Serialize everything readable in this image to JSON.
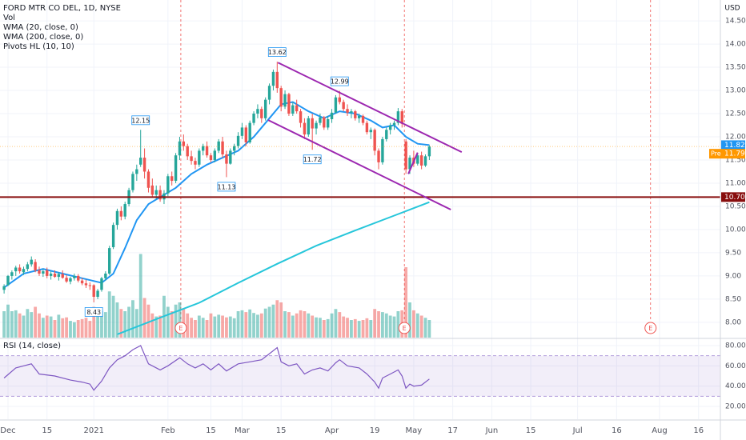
{
  "chart_data": [
    {
      "type": "candlestick",
      "title": "FORD MTR CO DEL, 1D, NYSE",
      "currency": "USD",
      "volume_name": "Vol",
      "up_color": "#26a69a",
      "down_color": "#ef5350",
      "xlim": [
        -1.05,
        183.6
      ],
      "ylim": [
        7.67,
        14.95
      ],
      "vlim": [
        0,
        400
      ],
      "yticks": [
        {
          "value": 8,
          "label": "8.00"
        },
        {
          "value": 8.5,
          "label": "8.50"
        },
        {
          "value": 9,
          "label": "9.00"
        },
        {
          "value": 9.5,
          "label": "9.50"
        },
        {
          "value": 10,
          "label": "10.00"
        },
        {
          "value": 10.5,
          "label": "10.50"
        },
        {
          "value": 11,
          "label": "11.00"
        },
        {
          "value": 11.5,
          "label": "11.50"
        },
        {
          "value": 12,
          "label": "12.00"
        },
        {
          "value": 12.5,
          "label": "12.50"
        },
        {
          "value": 13,
          "label": "13.00"
        },
        {
          "value": 13.5,
          "label": "13.50"
        },
        {
          "value": 14,
          "label": "14.00"
        },
        {
          "value": 14.5,
          "label": "14.50"
        }
      ],
      "xticks": [
        {
          "value": 1,
          "label": "Dec"
        },
        {
          "value": 11,
          "label": "15"
        },
        {
          "value": 23,
          "label": "2021"
        },
        {
          "value": 42,
          "label": "Feb"
        },
        {
          "value": 53,
          "label": "15"
        },
        {
          "value": 61,
          "label": "Mar"
        },
        {
          "value": 71,
          "label": "15"
        },
        {
          "value": 84,
          "label": "Apr"
        },
        {
          "value": 95,
          "label": "19"
        },
        {
          "value": 105,
          "label": "May"
        },
        {
          "value": 115,
          "label": "17"
        },
        {
          "value": 125,
          "label": "Jun"
        },
        {
          "value": 135,
          "label": "15"
        },
        {
          "value": 147,
          "label": "Jul"
        },
        {
          "value": 157,
          "label": "16"
        },
        {
          "value": 168,
          "label": "Aug"
        },
        {
          "value": 178,
          "label": "16"
        }
      ],
      "candles": [
        [
          8.7,
          8.82,
          8.62,
          8.78
        ],
        [
          8.8,
          9.02,
          8.78,
          9.0
        ],
        [
          9.0,
          9.12,
          8.92,
          9.08
        ],
        [
          9.1,
          9.22,
          9.0,
          9.18
        ],
        [
          9.18,
          9.25,
          9.05,
          9.1
        ],
        [
          9.08,
          9.2,
          9.02,
          9.15
        ],
        [
          9.15,
          9.3,
          9.1,
          9.25
        ],
        [
          9.25,
          9.42,
          9.2,
          9.35
        ],
        [
          9.3,
          9.36,
          9.08,
          9.12
        ],
        [
          9.12,
          9.2,
          9.0,
          9.05
        ],
        [
          9.05,
          9.15,
          8.98,
          9.1
        ],
        [
          9.12,
          9.18,
          8.95,
          9.0
        ],
        [
          9.0,
          9.1,
          8.92,
          9.05
        ],
        [
          9.05,
          9.12,
          8.96,
          8.98
        ],
        [
          8.98,
          9.08,
          8.9,
          9.04
        ],
        [
          9.04,
          9.12,
          8.94,
          8.96
        ],
        [
          8.96,
          9.02,
          8.85,
          8.88
        ],
        [
          8.88,
          8.98,
          8.82,
          8.95
        ],
        [
          8.95,
          9.05,
          8.9,
          9.0
        ],
        [
          9.0,
          9.04,
          8.86,
          8.9
        ],
        [
          8.9,
          8.96,
          8.8,
          8.84
        ],
        [
          8.84,
          8.92,
          8.74,
          8.8
        ],
        [
          8.8,
          8.86,
          8.7,
          8.79
        ],
        [
          8.8,
          8.82,
          8.43,
          8.55
        ],
        [
          8.55,
          8.72,
          8.5,
          8.68
        ],
        [
          8.7,
          8.98,
          8.66,
          8.95
        ],
        [
          8.95,
          9.1,
          8.9,
          9.05
        ],
        [
          9.05,
          9.65,
          9.02,
          9.6
        ],
        [
          9.62,
          10.15,
          9.58,
          10.1
        ],
        [
          10.1,
          10.45,
          10.0,
          10.4
        ],
        [
          10.4,
          10.5,
          10.2,
          10.28
        ],
        [
          10.28,
          10.6,
          10.22,
          10.55
        ],
        [
          10.55,
          10.9,
          10.5,
          10.85
        ],
        [
          10.85,
          11.25,
          10.8,
          11.2
        ],
        [
          11.2,
          11.4,
          11.05,
          11.3
        ],
        [
          11.4,
          12.15,
          11.35,
          11.55
        ],
        [
          11.55,
          11.75,
          11.1,
          11.25
        ],
        [
          11.25,
          11.3,
          10.8,
          10.9
        ],
        [
          10.95,
          11.1,
          10.7,
          10.75
        ],
        [
          10.75,
          10.95,
          10.65,
          10.85
        ],
        [
          10.85,
          10.95,
          10.6,
          10.65
        ],
        [
          10.65,
          10.85,
          10.55,
          10.78
        ],
        [
          10.78,
          11.2,
          10.72,
          11.15
        ],
        [
          11.15,
          11.25,
          10.95,
          11.05
        ],
        [
          11.05,
          11.65,
          11.0,
          11.6
        ],
        [
          11.6,
          12.0,
          11.5,
          11.9
        ],
        [
          11.9,
          12.05,
          11.7,
          11.8
        ],
        [
          11.8,
          11.85,
          11.5,
          11.58
        ],
        [
          11.58,
          11.7,
          11.4,
          11.48
        ],
        [
          11.48,
          11.55,
          11.3,
          11.4
        ],
        [
          11.4,
          11.75,
          11.35,
          11.7
        ],
        [
          11.7,
          11.85,
          11.6,
          11.8
        ],
        [
          11.8,
          11.9,
          11.55,
          11.6
        ],
        [
          11.6,
          11.65,
          11.45,
          11.5
        ],
        [
          11.5,
          11.75,
          11.45,
          11.7
        ],
        [
          11.7,
          11.95,
          11.65,
          11.9
        ],
        [
          11.9,
          12.0,
          11.55,
          11.62
        ],
        [
          11.62,
          11.7,
          11.13,
          11.42
        ],
        [
          11.42,
          11.75,
          11.4,
          11.7
        ],
        [
          11.7,
          11.85,
          11.6,
          11.8
        ],
        [
          11.8,
          12.1,
          11.75,
          12.02
        ],
        [
          12.02,
          12.3,
          11.95,
          12.2
        ],
        [
          12.2,
          12.25,
          11.8,
          11.88
        ],
        [
          11.88,
          12.35,
          11.85,
          12.3
        ],
        [
          12.3,
          12.55,
          12.25,
          12.5
        ],
        [
          12.5,
          12.7,
          12.4,
          12.6
        ],
        [
          12.6,
          12.65,
          12.3,
          12.4
        ],
        [
          12.4,
          12.85,
          12.35,
          12.8
        ],
        [
          12.8,
          13.15,
          12.7,
          13.1
        ],
        [
          13.1,
          13.45,
          13.0,
          13.4
        ],
        [
          13.4,
          13.62,
          12.95,
          13.05
        ],
        [
          13.05,
          13.1,
          12.55,
          12.65
        ],
        [
          12.65,
          13.0,
          12.6,
          12.92
        ],
        [
          12.92,
          12.95,
          12.45,
          12.5
        ],
        [
          12.5,
          12.75,
          12.45,
          12.68
        ],
        [
          12.68,
          12.8,
          12.5,
          12.55
        ],
        [
          12.55,
          12.6,
          12.2,
          12.3
        ],
        [
          12.3,
          12.4,
          11.95,
          12.05
        ],
        [
          12.05,
          12.45,
          12.0,
          12.4
        ],
        [
          12.4,
          12.5,
          11.72,
          12.18
        ],
        [
          12.18,
          12.35,
          12.05,
          12.3
        ],
        [
          12.3,
          12.5,
          12.25,
          12.42
        ],
        [
          12.42,
          12.45,
          12.15,
          12.2
        ],
        [
          12.2,
          12.45,
          12.15,
          12.38
        ],
        [
          12.38,
          12.6,
          12.3,
          12.52
        ],
        [
          12.52,
          12.9,
          12.5,
          12.85
        ],
        [
          12.85,
          12.99,
          12.7,
          12.75
        ],
        [
          12.75,
          12.8,
          12.55,
          12.6
        ],
        [
          12.6,
          12.7,
          12.45,
          12.52
        ],
        [
          12.52,
          12.6,
          12.4,
          12.55
        ],
        [
          12.55,
          12.58,
          12.35,
          12.4
        ],
        [
          12.4,
          12.5,
          12.3,
          12.45
        ],
        [
          12.45,
          12.48,
          12.25,
          12.3
        ],
        [
          12.3,
          12.35,
          12.05,
          12.1
        ],
        [
          12.1,
          12.2,
          11.95,
          12.15
        ],
        [
          12.15,
          12.18,
          11.6,
          11.7
        ],
        [
          11.7,
          11.75,
          11.3,
          11.45
        ],
        [
          11.45,
          12.0,
          11.4,
          11.95
        ],
        [
          11.95,
          12.2,
          11.9,
          12.15
        ],
        [
          12.15,
          12.3,
          12.05,
          12.25
        ],
        [
          12.25,
          12.35,
          12.15,
          12.3
        ],
        [
          12.3,
          12.62,
          12.25,
          12.55
        ],
        [
          12.55,
          12.6,
          12.2,
          12.28
        ],
        [
          11.9,
          11.95,
          11.2,
          11.3
        ],
        [
          11.3,
          11.6,
          11.2,
          11.55
        ],
        [
          11.55,
          11.7,
          11.35,
          11.42
        ],
        [
          11.42,
          11.65,
          11.38,
          11.6
        ],
        [
          11.6,
          11.68,
          11.3,
          11.38
        ],
        [
          11.38,
          11.62,
          11.35,
          11.58
        ],
        [
          11.58,
          11.82,
          11.5,
          11.79
        ]
      ],
      "volume": [
        60,
        75,
        60,
        62,
        55,
        50,
        65,
        58,
        70,
        55,
        45,
        50,
        48,
        40,
        52,
        44,
        46,
        38,
        35,
        40,
        42,
        45,
        38,
        70,
        55,
        60,
        58,
        105,
        95,
        80,
        65,
        60,
        70,
        85,
        65,
        190,
        90,
        75,
        55,
        48,
        50,
        95,
        70,
        60,
        75,
        80,
        65,
        55,
        45,
        40,
        50,
        45,
        40,
        55,
        48,
        52,
        50,
        46,
        48,
        44,
        60,
        62,
        58,
        64,
        56,
        52,
        55,
        66,
        70,
        75,
        85,
        80,
        60,
        58,
        50,
        55,
        62,
        60,
        55,
        50,
        46,
        45,
        40,
        42,
        55,
        65,
        58,
        48,
        45,
        40,
        42,
        38,
        40,
        44,
        40,
        65,
        60,
        58,
        55,
        50,
        48,
        60,
        62,
        160,
        80,
        62,
        55,
        50,
        45,
        40
      ],
      "series": [
        {
          "name": "WMA (20, close, 0)",
          "color": "#2196f3",
          "x": [
            0,
            5,
            10,
            15,
            20,
            25,
            28,
            31,
            34,
            37,
            40,
            44,
            48,
            52,
            56,
            60,
            64,
            68,
            71,
            74,
            78,
            82,
            86,
            90,
            94,
            97,
            100,
            103,
            106,
            109
          ],
          "values": [
            8.75,
            9.05,
            9.15,
            9.05,
            8.95,
            8.85,
            9.05,
            9.6,
            10.2,
            10.55,
            10.7,
            10.9,
            11.2,
            11.4,
            11.55,
            11.7,
            12.0,
            12.4,
            12.7,
            12.75,
            12.55,
            12.4,
            12.55,
            12.5,
            12.35,
            12.2,
            12.25,
            12.0,
            11.85,
            11.82
          ]
        },
        {
          "name": "WMA (200, close, 0)",
          "color": "#26c6da",
          "x": [
            29,
            40,
            50,
            60,
            70,
            80,
            90,
            100,
            109
          ],
          "values": [
            7.74,
            8.1,
            8.42,
            8.85,
            9.26,
            9.65,
            9.98,
            10.3,
            10.59
          ]
        }
      ],
      "pivots": {
        "name": "Pivots HL (10, 10)",
        "x": [
          23,
          35,
          57,
          70,
          79,
          86
        ],
        "values": [
          8.43,
          12.15,
          11.13,
          13.62,
          11.72,
          12.99
        ],
        "position": [
          "below",
          "above",
          "below",
          "above",
          "below",
          "above"
        ]
      },
      "levels": [
        {
          "value": 10.7,
          "label": "10.70",
          "color": "#880e0e"
        }
      ],
      "price_tags": [
        {
          "value": 11.82,
          "color": "#2196f3"
        },
        {
          "name": "Pre",
          "value": 11.79,
          "color": "#ff9800"
        }
      ],
      "events": [
        {
          "x": 45.3,
          "label": "E"
        },
        {
          "x": 102.6,
          "label": "E"
        },
        {
          "x": 165.7,
          "label": "E"
        }
      ],
      "drawings": [
        {
          "x": [
            70.2,
            117.3
          ],
          "y": [
            13.6,
            11.67
          ],
          "color": "#9c27b0"
        },
        {
          "x": [
            67.7,
            114.5
          ],
          "y": [
            12.36,
            10.43
          ],
          "color": "#9c27b0"
        },
        {
          "x": [
            103.6,
            106.0
          ],
          "y": [
            11.2,
            11.66
          ],
          "color": "#9c27b0"
        }
      ]
    },
    {
      "type": "line",
      "title": "RSI (14, close)",
      "color": "#7e57c2",
      "ylim": [
        7.4,
        86.3
      ],
      "band": [
        30,
        70
      ],
      "yticks": [
        {
          "value": 20,
          "label": "20.00"
        },
        {
          "value": 40,
          "label": "40.00"
        },
        {
          "value": 60,
          "label": "60.00"
        },
        {
          "value": 80,
          "label": "80.00"
        }
      ],
      "x": [
        0,
        3,
        7,
        9,
        13,
        17,
        20,
        22,
        23,
        25,
        27,
        29,
        31,
        33,
        35,
        37,
        40,
        42,
        45,
        47,
        49,
        51,
        53,
        55,
        57,
        60,
        63,
        66,
        68,
        70,
        71,
        73,
        75,
        77,
        79,
        81,
        83,
        85,
        86,
        88,
        91,
        93,
        95,
        96,
        97,
        99,
        101,
        102,
        103,
        104,
        105,
        107,
        109
      ],
      "values": [
        48,
        58,
        62,
        52,
        50,
        46,
        44,
        42,
        36,
        45,
        58,
        66,
        70,
        76,
        80,
        62,
        56,
        60,
        68,
        62,
        58,
        62,
        56,
        62,
        55,
        62,
        64,
        66,
        72,
        78,
        64,
        60,
        62,
        52,
        56,
        58,
        55,
        63,
        66,
        60,
        58,
        52,
        44,
        38,
        48,
        52,
        56,
        50,
        38,
        42,
        40,
        41,
        47
      ]
    }
  ]
}
